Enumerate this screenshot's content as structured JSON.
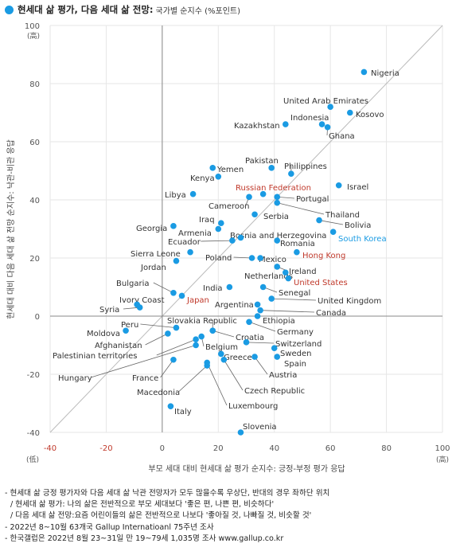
{
  "header": {
    "title": "현세대 삶 평가, 다음 세대 삶 전망:",
    "subtitle": "국가별 순지수 (%포인트)"
  },
  "colors": {
    "point": "#1a9be3",
    "highlight_red": "#c0392b",
    "highlight_blue": "#1a9be3",
    "axis": "#888888",
    "grid": "#e6e6e6",
    "diagonal": "#bbbbbb"
  },
  "chart_data": {
    "type": "scatter",
    "xlabel": "부모 세대 대비 현세대 삶 평가 순지수: 긍정-부정 평가 응답",
    "ylabel": "현세대 대비 다음 세대 삶 전망 순지수: 낙관-비관 응답",
    "xlim": [
      -40,
      100
    ],
    "ylim": [
      -40,
      100
    ],
    "x_ticks": [
      -40,
      -20,
      0,
      20,
      40,
      60,
      80,
      100
    ],
    "y_ticks": [
      -40,
      -20,
      0,
      20,
      40,
      60,
      80,
      100
    ],
    "x_unit_high": "(高)",
    "x_unit_low": "(低)",
    "y_unit_high": "(高)",
    "grid": true,
    "diagonal_reference": true,
    "points": [
      {
        "name": "Nigeria",
        "x": 72,
        "y": 84,
        "hl": ""
      },
      {
        "name": "United Arab Emirates",
        "x": 60,
        "y": 72,
        "hl": ""
      },
      {
        "name": "Kosovo",
        "x": 67,
        "y": 70,
        "hl": ""
      },
      {
        "name": "Indonesia",
        "x": 57,
        "y": 66,
        "hl": ""
      },
      {
        "name": "Kazakhstan",
        "x": 44,
        "y": 66,
        "hl": ""
      },
      {
        "name": "Ghana",
        "x": 59,
        "y": 65,
        "hl": ""
      },
      {
        "name": "Pakistan",
        "x": 39,
        "y": 51,
        "hl": ""
      },
      {
        "name": "Philippines",
        "x": 46,
        "y": 49,
        "hl": ""
      },
      {
        "name": "Yemen",
        "x": 18,
        "y": 51,
        "hl": ""
      },
      {
        "name": "Kenya",
        "x": 20,
        "y": 48,
        "hl": ""
      },
      {
        "name": "Israel",
        "x": 63,
        "y": 45,
        "hl": ""
      },
      {
        "name": "Russian Federation",
        "x": 36,
        "y": 42,
        "hl": "red"
      },
      {
        "name": "Libya",
        "x": 11,
        "y": 42,
        "hl": ""
      },
      {
        "name": "Portugal",
        "x": 41,
        "y": 41,
        "hl": ""
      },
      {
        "name": "Cameroon",
        "x": 31,
        "y": 41,
        "hl": ""
      },
      {
        "name": "Thailand",
        "x": 41,
        "y": 39,
        "hl": ""
      },
      {
        "name": "Serbia",
        "x": 33,
        "y": 35,
        "hl": ""
      },
      {
        "name": "Bolivia",
        "x": 56,
        "y": 33,
        "hl": ""
      },
      {
        "name": "Iraq",
        "x": 21,
        "y": 32,
        "hl": ""
      },
      {
        "name": "Georgia",
        "x": 4,
        "y": 31,
        "hl": ""
      },
      {
        "name": "Armenia",
        "x": 20,
        "y": 30,
        "hl": ""
      },
      {
        "name": "Bosnia and Herzegovina",
        "x": 28,
        "y": 27,
        "hl": ""
      },
      {
        "name": "South Korea",
        "x": 61,
        "y": 29,
        "hl": "blue"
      },
      {
        "name": "Romania",
        "x": 41,
        "y": 26,
        "hl": ""
      },
      {
        "name": "Ecuador",
        "x": 25,
        "y": 26,
        "hl": ""
      },
      {
        "name": "Sierra Leone",
        "x": 10,
        "y": 22,
        "hl": ""
      },
      {
        "name": "Hong Kong",
        "x": 48,
        "y": 22,
        "hl": "red"
      },
      {
        "name": "Poland",
        "x": 32,
        "y": 20,
        "hl": ""
      },
      {
        "name": "Mexico",
        "x": 35,
        "y": 20,
        "hl": ""
      },
      {
        "name": "Jordan",
        "x": 5,
        "y": 19,
        "hl": ""
      },
      {
        "name": "Ireland",
        "x": 41,
        "y": 17,
        "hl": ""
      },
      {
        "name": "Netherlands",
        "x": 44,
        "y": 15,
        "hl": ""
      },
      {
        "name": "United States",
        "x": 45,
        "y": 13,
        "hl": "red"
      },
      {
        "name": "India",
        "x": 24,
        "y": 10,
        "hl": ""
      },
      {
        "name": "Senegal",
        "x": 36,
        "y": 10,
        "hl": ""
      },
      {
        "name": "Bulgaria",
        "x": 4,
        "y": 8,
        "hl": ""
      },
      {
        "name": "Japan",
        "x": 7,
        "y": 7,
        "hl": "red"
      },
      {
        "name": "Ivory Coast",
        "x": -9,
        "y": 4,
        "hl": ""
      },
      {
        "name": "Syria",
        "x": -8,
        "y": 3,
        "hl": ""
      },
      {
        "name": "United Kingdom",
        "x": 39,
        "y": 6,
        "hl": ""
      },
      {
        "name": "Argentina",
        "x": 34,
        "y": 4,
        "hl": ""
      },
      {
        "name": "Canada",
        "x": 35,
        "y": 2,
        "hl": ""
      },
      {
        "name": "Ethiopia",
        "x": 34,
        "y": 0,
        "hl": ""
      },
      {
        "name": "Germany",
        "x": 31,
        "y": -2,
        "hl": ""
      },
      {
        "name": "Slovakia Republic",
        "x": 18,
        "y": -5,
        "hl": ""
      },
      {
        "name": "Croatia",
        "x": 18,
        "y": -5,
        "hl": ""
      },
      {
        "name": "Peru",
        "x": 5,
        "y": -4,
        "hl": ""
      },
      {
        "name": "Moldova",
        "x": -13,
        "y": -5,
        "hl": ""
      },
      {
        "name": "Afghanistan",
        "x": 2,
        "y": -6,
        "hl": ""
      },
      {
        "name": "Palestinian territories",
        "x": 12,
        "y": -8,
        "hl": ""
      },
      {
        "name": "Belgium",
        "x": 14,
        "y": -7,
        "hl": ""
      },
      {
        "name": "Switzerland",
        "x": 30,
        "y": -9,
        "hl": ""
      },
      {
        "name": "Sweden",
        "x": 40,
        "y": -11,
        "hl": ""
      },
      {
        "name": "Greece",
        "x": 21,
        "y": -13,
        "hl": ""
      },
      {
        "name": "Spain",
        "x": 41,
        "y": -14,
        "hl": ""
      },
      {
        "name": "Hungary",
        "x": 12,
        "y": -10,
        "hl": ""
      },
      {
        "name": "Austria",
        "x": 33,
        "y": -14,
        "hl": ""
      },
      {
        "name": "France",
        "x": 4,
        "y": -15,
        "hl": ""
      },
      {
        "name": "Macedonia",
        "x": 16,
        "y": -17,
        "hl": ""
      },
      {
        "name": "Czech Republic",
        "x": 22,
        "y": -15,
        "hl": ""
      },
      {
        "name": "Luxembourg",
        "x": 16,
        "y": -16,
        "hl": ""
      },
      {
        "name": "Italy",
        "x": 3,
        "y": -31,
        "hl": ""
      },
      {
        "name": "Slovenia",
        "x": 28,
        "y": -40,
        "hl": ""
      }
    ]
  },
  "notes": [
    "- 현세대 삶 긍정 평가자와 다음 세대 삶 낙관 전망자가 모두 많을수록 우상단, 반대의 경우 좌하단 위치",
    "/ 현세대 삶 평가: 나의 삶은 전반적으로 부모 세대보다 '좋은 편, 나쁜 편, 비슷하다'",
    "/ 다음 세대 삶 전망:요즘 어린이들의 삶은 전반적으로 나보다 '좋아질 것, 나빠질 것, 비슷할 것'",
    "- 2022년 8~10월 63개국 Gallup Internatioanl 75주년 조사",
    "- 한국갤럽은 2022년 8월 23~31일 만 19~79세 1,035명 조사 www.gallup.co.kr"
  ]
}
